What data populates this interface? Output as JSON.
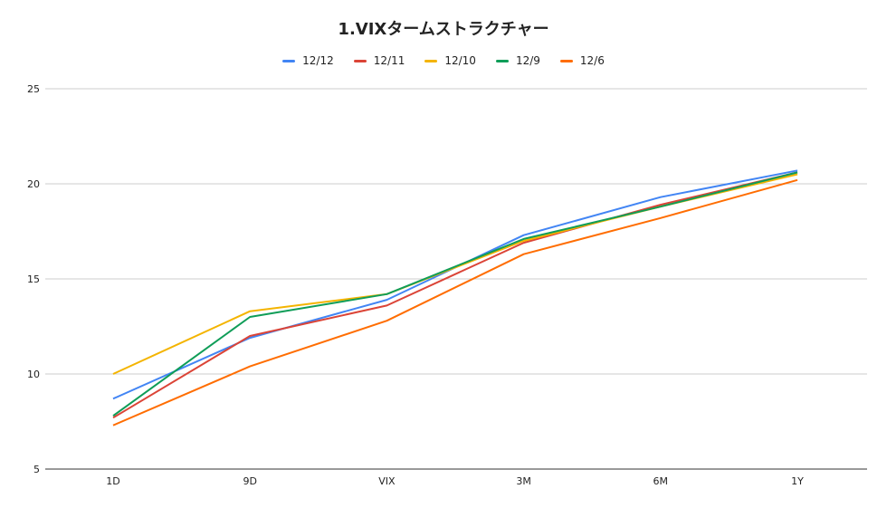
{
  "chart_data": {
    "type": "line",
    "title": "1.VIXタームストラクチャー",
    "categories": [
      "1D",
      "9D",
      "VIX",
      "3M",
      "6M",
      "1Y"
    ],
    "ylim": [
      5,
      25
    ],
    "yticks": [
      5,
      10,
      15,
      20,
      25
    ],
    "grid": true,
    "legend": "top",
    "series": [
      {
        "name": "12/12",
        "color": "#4285f4",
        "values": [
          8.7,
          11.9,
          13.9,
          17.3,
          19.3,
          20.7
        ]
      },
      {
        "name": "12/11",
        "color": "#db4437",
        "values": [
          7.7,
          12.0,
          13.6,
          16.9,
          18.9,
          20.6
        ]
      },
      {
        "name": "12/10",
        "color": "#f4b400",
        "values": [
          10.0,
          13.3,
          14.2,
          17.0,
          18.8,
          20.5
        ]
      },
      {
        "name": "12/9",
        "color": "#0f9d58",
        "values": [
          7.8,
          13.0,
          14.2,
          17.1,
          18.8,
          20.6
        ]
      },
      {
        "name": "12/6",
        "color": "#ff6d01",
        "values": [
          7.3,
          10.4,
          12.8,
          16.3,
          18.2,
          20.2
        ]
      }
    ]
  }
}
